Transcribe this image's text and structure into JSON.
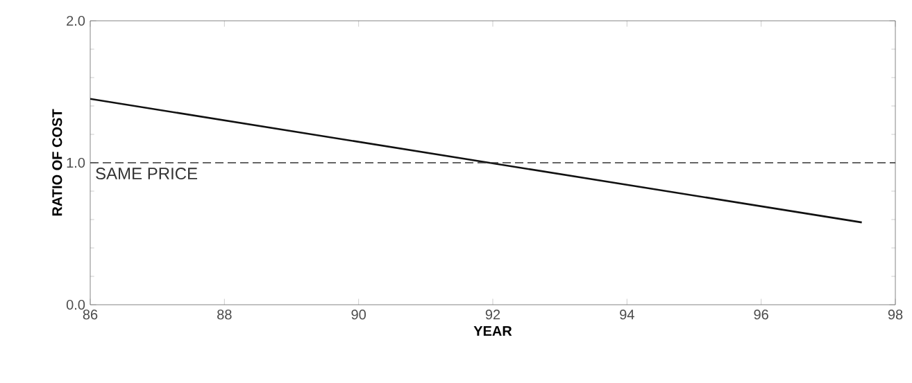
{
  "chart_data": {
    "type": "line",
    "xlabel": "YEAR",
    "ylabel": "RATIO OF COST",
    "x": [
      86,
      97.5
    ],
    "values": [
      1.45,
      0.58
    ],
    "color": "#111111",
    "xlim": [
      86,
      98
    ],
    "xticks": [
      86,
      88,
      90,
      92,
      94,
      96,
      98
    ],
    "ylim": [
      0,
      2
    ],
    "yticks": [
      {
        "value": 0,
        "label": "0.0"
      },
      {
        "value": 1,
        "label": "1.0"
      },
      {
        "value": 2,
        "label": "2.0"
      }
    ],
    "ref_lines": [
      {
        "axis": "y",
        "value": 1,
        "label": "SAME PRICE",
        "line_style": "dashed",
        "color": "#333333"
      }
    ],
    "grid": false,
    "marker": "none",
    "line_style": "solid"
  }
}
